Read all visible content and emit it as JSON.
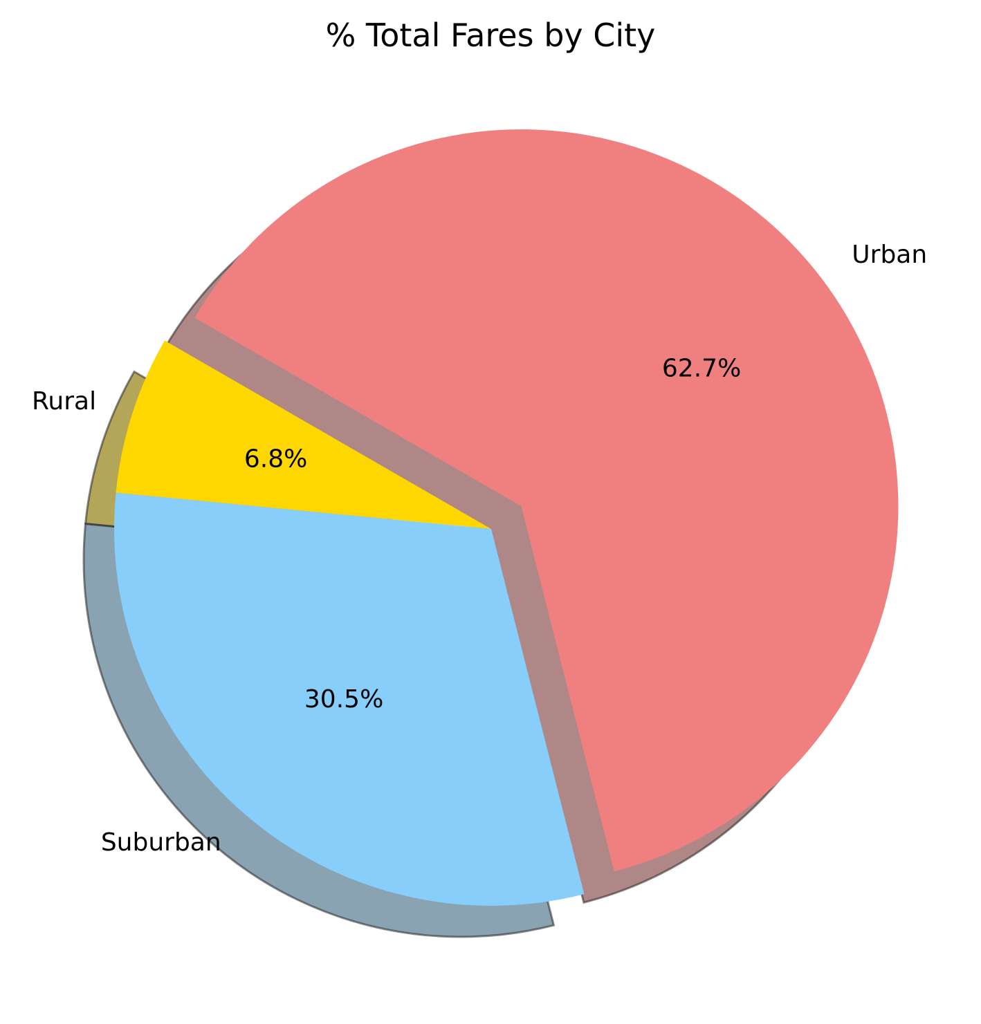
{
  "chart_data": {
    "type": "pie",
    "title": "% Total Fares by City",
    "slices": [
      {
        "label": "Rural",
        "value": 6.8,
        "pct_text": "6.8%",
        "color": "#FFD700",
        "explode": 0
      },
      {
        "label": "Suburban",
        "value": 30.5,
        "pct_text": "30.5%",
        "color": "#87CEFA",
        "explode": 0
      },
      {
        "label": "Urban",
        "value": 62.7,
        "pct_text": "62.7%",
        "color": "#F08080",
        "explode": 0.1
      }
    ],
    "start_angle_deg": 150,
    "shadow": true,
    "legend": "none"
  }
}
